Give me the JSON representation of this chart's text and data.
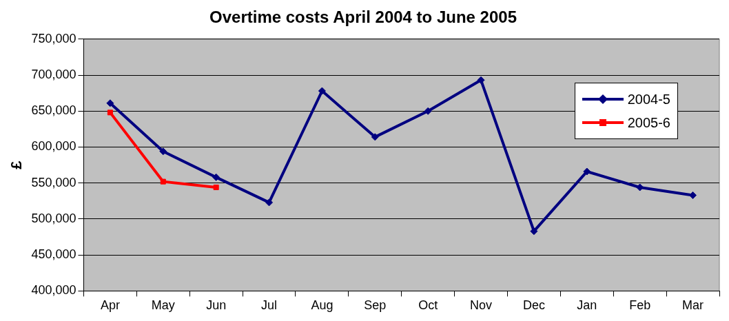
{
  "chart_data": {
    "type": "line",
    "title": "Overtime costs April 2004 to June 2005",
    "ylabel": "£",
    "categories": [
      "Apr",
      "May",
      "Jun",
      "Jul",
      "Aug",
      "Sep",
      "Oct",
      "Nov",
      "Dec",
      "Jan",
      "Feb",
      "Mar"
    ],
    "series": [
      {
        "name": "2004-5",
        "color": "#000080",
        "marker": "diamond",
        "values": [
          661000,
          594000,
          558000,
          523000,
          678000,
          614000,
          650000,
          693000,
          483000,
          566000,
          544000,
          533000
        ]
      },
      {
        "name": "2005-6",
        "color": "#ff0000",
        "marker": "square",
        "values": [
          648000,
          552000,
          544000,
          null,
          null,
          null,
          null,
          null,
          null,
          null,
          null,
          null
        ]
      }
    ],
    "ylim": [
      400000,
      750000
    ],
    "yticks": [
      {
        "value": 400000,
        "label": "400,000"
      },
      {
        "value": 450000,
        "label": "450,000"
      },
      {
        "value": 500000,
        "label": "500,000"
      },
      {
        "value": 550000,
        "label": "550,000"
      },
      {
        "value": 600000,
        "label": "600,000"
      },
      {
        "value": 650000,
        "label": "650,000"
      },
      {
        "value": 700000,
        "label": "700,000"
      },
      {
        "value": 750000,
        "label": "750,000"
      }
    ],
    "grid": "y",
    "legend": "top right",
    "line_style": "solid"
  }
}
